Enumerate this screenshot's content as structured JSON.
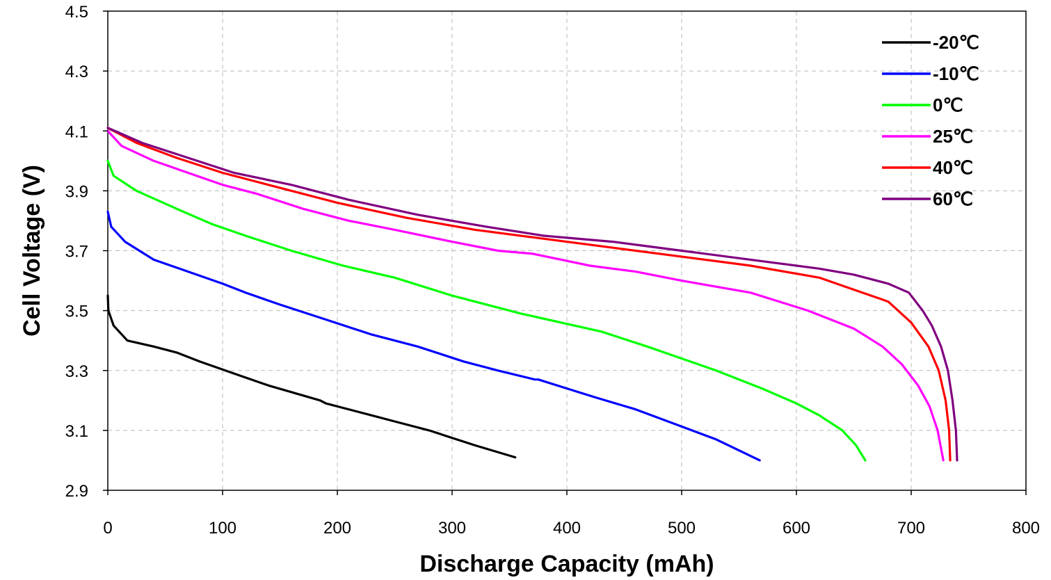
{
  "chart_data": {
    "type": "line",
    "xlabel": "Discharge Capacity (mAh)",
    "ylabel": "Cell Voltage (V)",
    "xlim": [
      0,
      800
    ],
    "ylim": [
      2.9,
      4.5
    ],
    "x_ticks": [
      "0",
      "100",
      "200",
      "300",
      "400",
      "500",
      "600",
      "700",
      "800"
    ],
    "y_ticks": [
      "2.9",
      "3.1",
      "3.3",
      "3.5",
      "3.7",
      "3.9",
      "4.1",
      "4.3",
      "4.5"
    ],
    "grid": true,
    "legend_position": "top-right",
    "series": [
      {
        "name": "-20℃",
        "color": "#000000",
        "points": [
          [
            0,
            3.55
          ],
          [
            0.5,
            3.5
          ],
          [
            5,
            3.45
          ],
          [
            17,
            3.4
          ],
          [
            40,
            3.38
          ],
          [
            60,
            3.36
          ],
          [
            80,
            3.33
          ],
          [
            110,
            3.29
          ],
          [
            140,
            3.25
          ],
          [
            185,
            3.2
          ],
          [
            190,
            3.19
          ],
          [
            230,
            3.15
          ],
          [
            250,
            3.13
          ],
          [
            280,
            3.1
          ],
          [
            320,
            3.05
          ],
          [
            355,
            3.01
          ]
        ]
      },
      {
        "name": "-10℃",
        "color": "#0000ff",
        "points": [
          [
            0,
            3.83
          ],
          [
            3,
            3.78
          ],
          [
            15,
            3.73
          ],
          [
            40,
            3.67
          ],
          [
            70,
            3.63
          ],
          [
            100,
            3.59
          ],
          [
            120,
            3.56
          ],
          [
            150,
            3.52
          ],
          [
            190,
            3.47
          ],
          [
            230,
            3.42
          ],
          [
            270,
            3.38
          ],
          [
            310,
            3.33
          ],
          [
            340,
            3.3
          ],
          [
            372,
            3.27
          ],
          [
            375,
            3.27
          ],
          [
            400,
            3.24
          ],
          [
            425,
            3.21
          ],
          [
            460,
            3.17
          ],
          [
            495,
            3.12
          ],
          [
            530,
            3.07
          ],
          [
            568,
            3.0
          ]
        ]
      },
      {
        "name": "0℃",
        "color": "#00ff00",
        "points": [
          [
            0,
            4.0
          ],
          [
            5,
            3.95
          ],
          [
            25,
            3.9
          ],
          [
            60,
            3.84
          ],
          [
            90,
            3.79
          ],
          [
            120,
            3.75
          ],
          [
            160,
            3.7
          ],
          [
            205,
            3.65
          ],
          [
            250,
            3.61
          ],
          [
            300,
            3.55
          ],
          [
            360,
            3.49
          ],
          [
            430,
            3.43
          ],
          [
            470,
            3.38
          ],
          [
            500,
            3.34
          ],
          [
            530,
            3.3
          ],
          [
            570,
            3.24
          ],
          [
            600,
            3.19
          ],
          [
            620,
            3.15
          ],
          [
            640,
            3.1
          ],
          [
            652,
            3.05
          ],
          [
            660,
            3.0
          ]
        ]
      },
      {
        "name": "25℃",
        "color": "#ff00ff",
        "points": [
          [
            0,
            4.1
          ],
          [
            12,
            4.05
          ],
          [
            40,
            4.0
          ],
          [
            70,
            3.96
          ],
          [
            100,
            3.92
          ],
          [
            130,
            3.89
          ],
          [
            170,
            3.84
          ],
          [
            210,
            3.8
          ],
          [
            250,
            3.77
          ],
          [
            300,
            3.73
          ],
          [
            340,
            3.7
          ],
          [
            370,
            3.69
          ],
          [
            420,
            3.65
          ],
          [
            460,
            3.63
          ],
          [
            500,
            3.6
          ],
          [
            560,
            3.56
          ],
          [
            610,
            3.5
          ],
          [
            650,
            3.44
          ],
          [
            675,
            3.38
          ],
          [
            692,
            3.32
          ],
          [
            706,
            3.25
          ],
          [
            716,
            3.18
          ],
          [
            723,
            3.1
          ],
          [
            728,
            3.0
          ]
        ]
      },
      {
        "name": "40℃",
        "color": "#ff0000",
        "points": [
          [
            0,
            4.11
          ],
          [
            25,
            4.06
          ],
          [
            60,
            4.01
          ],
          [
            100,
            3.96
          ],
          [
            140,
            3.92
          ],
          [
            200,
            3.86
          ],
          [
            260,
            3.81
          ],
          [
            320,
            3.77
          ],
          [
            380,
            3.74
          ],
          [
            440,
            3.71
          ],
          [
            500,
            3.68
          ],
          [
            560,
            3.65
          ],
          [
            620,
            3.61
          ],
          [
            650,
            3.57
          ],
          [
            680,
            3.53
          ],
          [
            700,
            3.46
          ],
          [
            715,
            3.38
          ],
          [
            724,
            3.3
          ],
          [
            730,
            3.2
          ],
          [
            733,
            3.1
          ],
          [
            734,
            3.0
          ]
        ]
      },
      {
        "name": "60℃",
        "color": "#800080",
        "points": [
          [
            0,
            4.11
          ],
          [
            30,
            4.06
          ],
          [
            70,
            4.01
          ],
          [
            110,
            3.96
          ],
          [
            160,
            3.92
          ],
          [
            210,
            3.87
          ],
          [
            270,
            3.82
          ],
          [
            330,
            3.78
          ],
          [
            380,
            3.75
          ],
          [
            440,
            3.73
          ],
          [
            500,
            3.7
          ],
          [
            560,
            3.67
          ],
          [
            620,
            3.64
          ],
          [
            650,
            3.62
          ],
          [
            680,
            3.59
          ],
          [
            698,
            3.56
          ],
          [
            710,
            3.5
          ],
          [
            718,
            3.45
          ],
          [
            726,
            3.38
          ],
          [
            732,
            3.3
          ],
          [
            736,
            3.2
          ],
          [
            739,
            3.1
          ],
          [
            740,
            3.0
          ]
        ]
      }
    ]
  }
}
